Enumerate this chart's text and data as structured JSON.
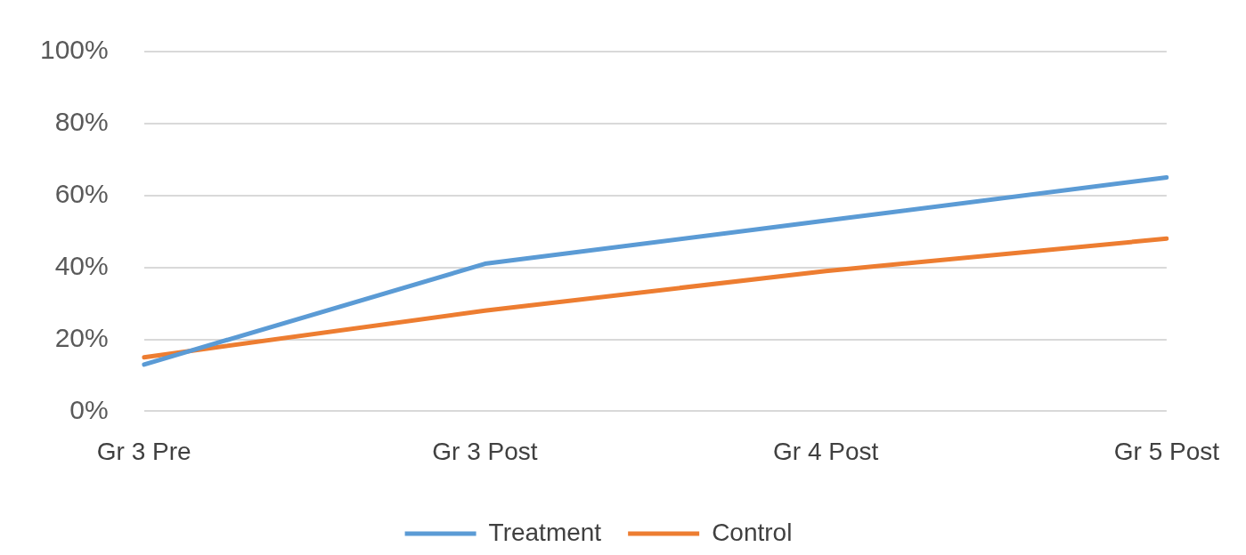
{
  "chart_data": {
    "type": "line",
    "categories": [
      "Gr 3 Pre",
      "Gr 3 Post",
      "Gr 4 Post",
      "Gr 5 Post"
    ],
    "series": [
      {
        "name": "Treatment",
        "color": "#5b9bd5",
        "values": [
          13,
          41,
          53,
          65
        ]
      },
      {
        "name": "Control",
        "color": "#ed7d31",
        "values": [
          15,
          28,
          39,
          48
        ]
      }
    ],
    "ylim": [
      0,
      100
    ],
    "yticks": [
      {
        "value": 0,
        "label": "0%"
      },
      {
        "value": 20,
        "label": "20%"
      },
      {
        "value": 40,
        "label": "40%"
      },
      {
        "value": 60,
        "label": "60%"
      },
      {
        "value": 80,
        "label": "80%"
      },
      {
        "value": 100,
        "label": "100%"
      }
    ],
    "grid": "y",
    "legend": "bottom",
    "marker": "none",
    "line_style": "solid"
  }
}
